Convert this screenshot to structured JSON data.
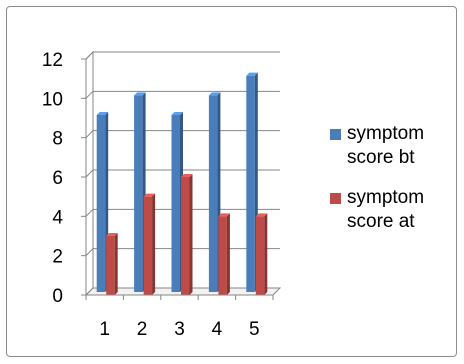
{
  "chart_data": {
    "type": "bar",
    "categories": [
      "1",
      "2",
      "3",
      "4",
      "5"
    ],
    "series": [
      {
        "name": "symptom score bt",
        "values": [
          9,
          10,
          9,
          10,
          11
        ],
        "color": "#4a7ebb"
      },
      {
        "name": "symptom score at",
        "values": [
          3,
          5,
          6,
          4,
          4
        ],
        "color": "#be4b48"
      }
    ],
    "yticks": [
      "0",
      "2",
      "4",
      "6",
      "8",
      "10",
      "12"
    ],
    "ylim": [
      0,
      12
    ],
    "grid": true,
    "legend_position": "right",
    "title": "",
    "xlabel": "",
    "ylabel": ""
  }
}
